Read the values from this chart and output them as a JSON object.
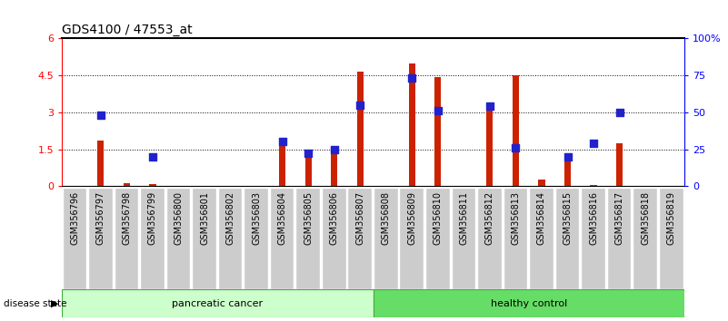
{
  "title": "GDS4100 / 47553_at",
  "samples": [
    "GSM356796",
    "GSM356797",
    "GSM356798",
    "GSM356799",
    "GSM356800",
    "GSM356801",
    "GSM356802",
    "GSM356803",
    "GSM356804",
    "GSM356805",
    "GSM356806",
    "GSM356807",
    "GSM356808",
    "GSM356809",
    "GSM356810",
    "GSM356811",
    "GSM356812",
    "GSM356813",
    "GSM356814",
    "GSM356815",
    "GSM356816",
    "GSM356817",
    "GSM356818",
    "GSM356819"
  ],
  "count_values": [
    0.0,
    1.85,
    0.12,
    0.08,
    0.0,
    0.0,
    0.0,
    0.0,
    1.65,
    1.27,
    1.42,
    4.65,
    0.0,
    5.0,
    4.45,
    0.0,
    3.35,
    4.5,
    0.27,
    1.28,
    0.05,
    1.73,
    0.0,
    0.0
  ],
  "percentile_values_pct": [
    null,
    48,
    null,
    20,
    null,
    null,
    null,
    null,
    30,
    22,
    25,
    55,
    null,
    73,
    51,
    null,
    54,
    26,
    null,
    20,
    29,
    50,
    null,
    null
  ],
  "pancreatic_cancer_range": [
    0,
    11
  ],
  "healthy_control_range": [
    12,
    23
  ],
  "ylim_left": [
    0,
    6
  ],
  "yticks_left": [
    0,
    1.5,
    3.0,
    4.5,
    6
  ],
  "ytick_labels_left": [
    "0",
    "1.5",
    "3",
    "4.5",
    "6"
  ],
  "yticks_right_pct": [
    0,
    25,
    50,
    75,
    100
  ],
  "ytick_labels_right": [
    "0",
    "25",
    "50",
    "75",
    "100%"
  ],
  "bar_color": "#CC2200",
  "dot_color": "#2222CC",
  "pancreatic_bg": "#CCFFCC",
  "healthy_bg": "#66DD66",
  "label_bg": "#CCCCCC",
  "title_fontsize": 10,
  "tick_fontsize": 8,
  "xlabel_fontsize": 7
}
